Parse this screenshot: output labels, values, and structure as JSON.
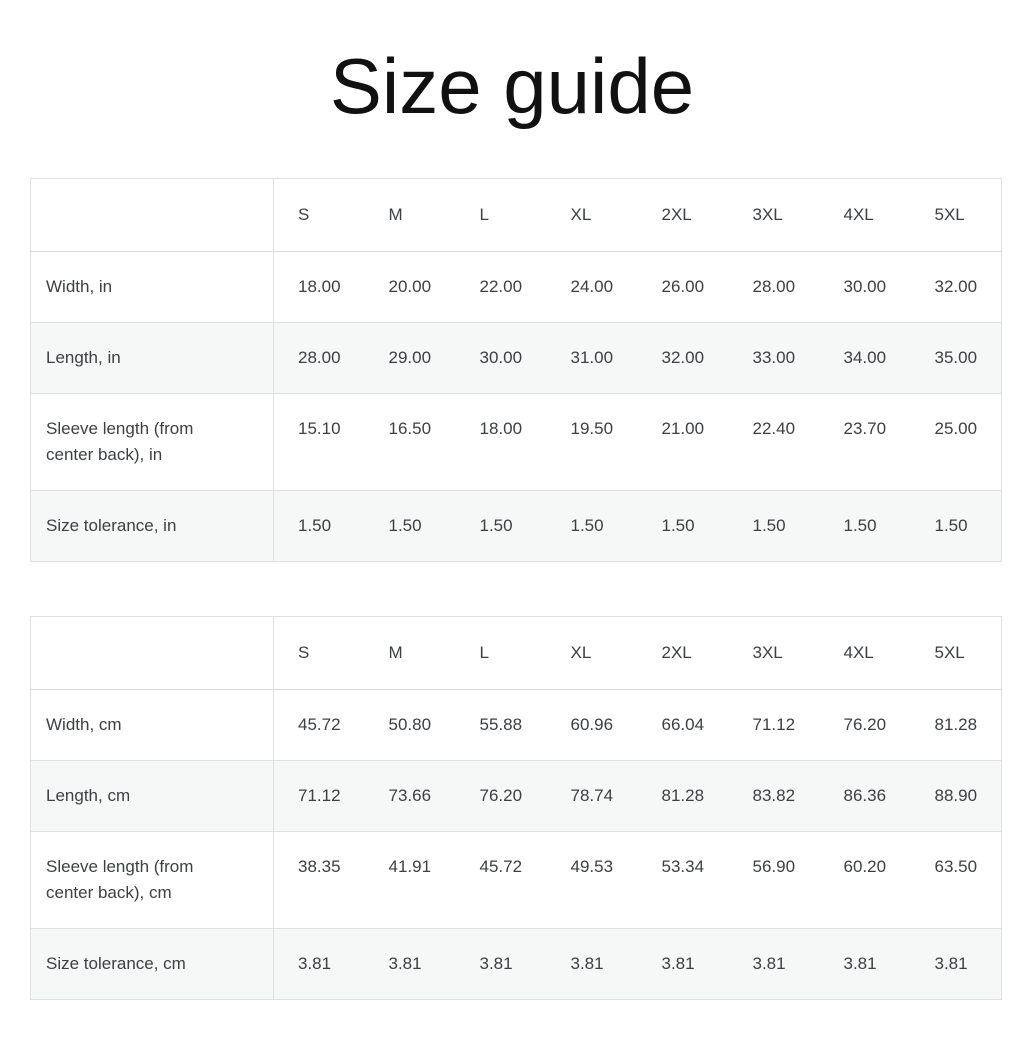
{
  "page": {
    "title": "Size guide"
  },
  "colors": {
    "background": "#ffffff",
    "text": "#3c4043",
    "title": "#111111",
    "border": "#e1e1e1",
    "header_border": "#d9d9d9",
    "alt_row_background": "#f6f7f7"
  },
  "chart_data": [
    {
      "type": "table",
      "unit": "inches",
      "size_columns": [
        "S",
        "M",
        "L",
        "XL",
        "2XL",
        "3XL",
        "4XL",
        "5XL"
      ],
      "rows": [
        {
          "label": "Width, in",
          "values": [
            "18.00",
            "20.00",
            "22.00",
            "24.00",
            "26.00",
            "28.00",
            "30.00",
            "32.00"
          ]
        },
        {
          "label": "Length, in",
          "values": [
            "28.00",
            "29.00",
            "30.00",
            "31.00",
            "32.00",
            "33.00",
            "34.00",
            "35.00"
          ]
        },
        {
          "label": "Sleeve length (from center back), in",
          "values": [
            "15.10",
            "16.50",
            "18.00",
            "19.50",
            "21.00",
            "22.40",
            "23.70",
            "25.00"
          ]
        },
        {
          "label": "Size tolerance, in",
          "values": [
            "1.50",
            "1.50",
            "1.50",
            "1.50",
            "1.50",
            "1.50",
            "1.50",
            "1.50"
          ]
        }
      ]
    },
    {
      "type": "table",
      "unit": "centimeters",
      "size_columns": [
        "S",
        "M",
        "L",
        "XL",
        "2XL",
        "3XL",
        "4XL",
        "5XL"
      ],
      "rows": [
        {
          "label": "Width, cm",
          "values": [
            "45.72",
            "50.80",
            "55.88",
            "60.96",
            "66.04",
            "71.12",
            "76.20",
            "81.28"
          ]
        },
        {
          "label": "Length, cm",
          "values": [
            "71.12",
            "73.66",
            "76.20",
            "78.74",
            "81.28",
            "83.82",
            "86.36",
            "88.90"
          ]
        },
        {
          "label": "Sleeve length (from center back), cm",
          "values": [
            "38.35",
            "41.91",
            "45.72",
            "49.53",
            "53.34",
            "56.90",
            "60.20",
            "63.50"
          ]
        },
        {
          "label": "Size tolerance, cm",
          "values": [
            "3.81",
            "3.81",
            "3.81",
            "3.81",
            "3.81",
            "3.81",
            "3.81",
            "3.81"
          ]
        }
      ]
    }
  ]
}
